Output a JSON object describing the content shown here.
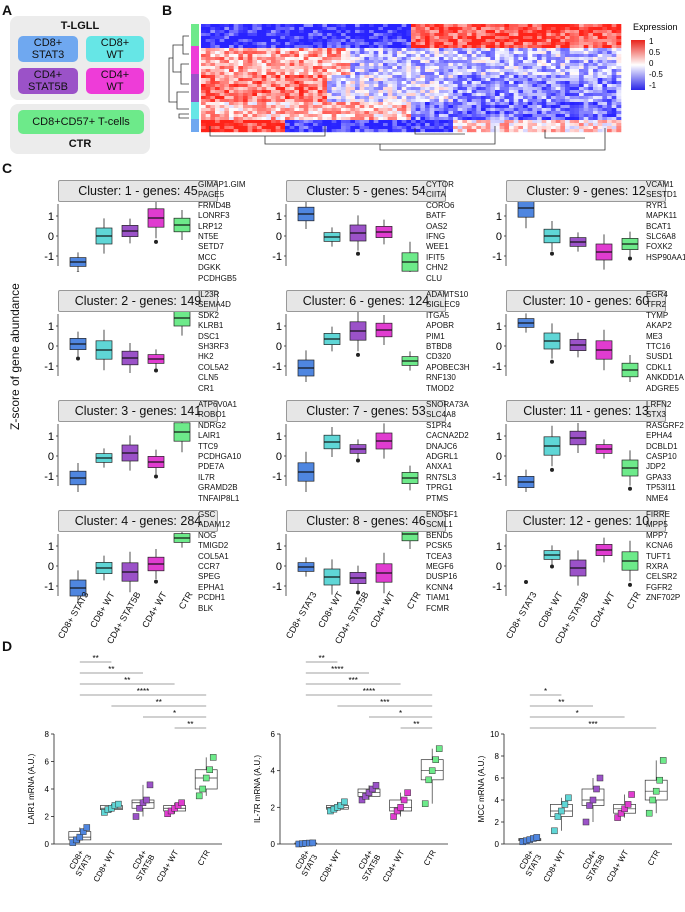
{
  "panel_labels": {
    "a": "A",
    "b": "B",
    "c": "C",
    "d": "D"
  },
  "panel_a": {
    "top_title": "T-LGLL",
    "bottom_title": "CTR",
    "cells": [
      {
        "label": "CD8+\nSTAT3",
        "color": "#6fa8f0"
      },
      {
        "label": "CD8+\nWT",
        "color": "#66e6e6"
      },
      {
        "label": "CD4+\nSTAT5B",
        "color": "#9b52c8"
      },
      {
        "label": "CD4+\nWT",
        "color": "#ee3cd8"
      }
    ],
    "ctr_label": "CD8+CD57+ T-cells",
    "ctr_color": "#6dea8a"
  },
  "panel_b": {
    "legend_title": "Expression",
    "legend_ticks": [
      "1",
      "0.5",
      "0",
      "-0.5",
      "-1"
    ],
    "group_colors": [
      "#6dea8a",
      "#ee3cd8",
      "#9b52c8",
      "#66e6e6",
      "#6fa8f0"
    ]
  },
  "panel_c": {
    "y_axis_label": "Z-score of gene abundance",
    "groups": [
      "CD8+ STAT3",
      "CD8+ WT",
      "CD4+ STAT5B",
      "CD4+ WT",
      "CTR"
    ],
    "group_colors": [
      "#4f86e0",
      "#5fd6d6",
      "#9b52c8",
      "#e03cd0",
      "#6dea8a"
    ],
    "y_ticks": [
      "1",
      "0",
      "-1"
    ],
    "clusters": [
      {
        "title": "Cluster:  1 - genes: 45",
        "genes": [
          "GIMAP1.GIM",
          "PAGE5",
          "FRMD4B",
          "LONRF3",
          "LRP12",
          "NT5E",
          "SETD7",
          "MCC",
          "DGKK",
          "PCDHGB5"
        ],
        "medians": [
          -1.3,
          0.0,
          0.25,
          0.9,
          0.55
        ]
      },
      {
        "title": "Cluster:  5 - genes: 54",
        "genes": [
          "CYTOR",
          "CIITA",
          "CORO6",
          "BATF",
          "OAS2",
          "IFNG",
          "WEE1",
          "IFIT5",
          "CHN2",
          "CLU"
        ],
        "medians": [
          1.1,
          -0.05,
          0.15,
          0.2,
          -1.3
        ]
      },
      {
        "title": "Cluster:  9 - genes: 12",
        "genes": [
          "VCAM1",
          "SESTD1",
          "RYR1",
          "MAPK11",
          "BCAT1",
          "SLC6A8",
          "FOXK2",
          "HSP90AA1"
        ],
        "medians": [
          1.4,
          0.0,
          -0.3,
          -0.8,
          -0.4
        ]
      },
      {
        "title": "Cluster:  2 - genes: 149",
        "genes": [
          "IL23R",
          "SEMA4D",
          "SDK2",
          "KLRB1",
          "DSC1",
          "SH3RF3",
          "HK2",
          "COL5A2",
          "CLN5",
          "CR1"
        ],
        "medians": [
          0.1,
          -0.2,
          -0.6,
          -0.65,
          1.4
        ]
      },
      {
        "title": "Cluster:  6 - genes: 124",
        "genes": [
          "ADAMTS10",
          "SIGLEC9",
          "ITGA5",
          "APOBR",
          "PIM1",
          "BTBD8",
          "CD320",
          "APOBEC3H",
          "RNF130",
          "TMOD2"
        ],
        "medians": [
          -1.1,
          0.35,
          0.75,
          0.8,
          -0.75
        ]
      },
      {
        "title": "Cluster:  10 - genes: 60",
        "genes": [
          "EGR4",
          "TFR2",
          "TYMP",
          "AKAP2",
          "ME3",
          "TTC16",
          "SUSD1",
          "CDKL1",
          "ANKDD1A",
          "ADGRE5"
        ],
        "medians": [
          1.15,
          0.25,
          0.05,
          -0.2,
          -1.2
        ]
      },
      {
        "title": "Cluster:  3 - genes: 141",
        "genes": [
          "ATP6V0A1",
          "ROBO1",
          "NDRG2",
          "LAIR1",
          "TTC9",
          "PCDHGA10",
          "PDE7A",
          "IL7R",
          "GRAMD2B",
          "TNFAIP8L1"
        ],
        "medians": [
          -1.1,
          -0.1,
          0.15,
          -0.3,
          1.2
        ]
      },
      {
        "title": "Cluster:  7 - genes: 53",
        "genes": [
          "SNORA73A",
          "SLC4A8",
          "S1PR4",
          "CACNA2D2",
          "DNAJC6",
          "ADGRL1",
          "ANXA1",
          "RN7SL3",
          "TPRG1",
          "PTMS"
        ],
        "medians": [
          -0.8,
          0.7,
          0.35,
          0.75,
          -1.1
        ]
      },
      {
        "title": "Cluster:  11 - genes: 13",
        "genes": [
          "LRFN2",
          "STX3",
          "RASGRF2",
          "EPHA4",
          "DCBLD1",
          "CASP10",
          "JDP2",
          "GPA33",
          "TP53I11",
          "NME4"
        ],
        "medians": [
          -1.3,
          0.5,
          0.9,
          0.35,
          -0.6
        ]
      },
      {
        "title": "Cluster:  4 - genes: 284",
        "genes": [
          "GSC",
          "ADAM12",
          "NOG",
          "TMIGD2",
          "COL5A1",
          "CCR7",
          "SPEG",
          "EPHA1",
          "PCDH1",
          "BLK"
        ],
        "medians": [
          -1.1,
          -0.1,
          -0.3,
          0.1,
          1.4
        ]
      },
      {
        "title": "Cluster:  8 - genes: 46",
        "genes": [
          "ENOSF1",
          "SCML1",
          "BEND5",
          "PCSK5",
          "TCEA3",
          "MEGF6",
          "DUSP16",
          "KCNN4",
          "TIAM1",
          "FCMR"
        ],
        "medians": [
          -0.05,
          -0.55,
          -0.6,
          -0.35,
          1.6
        ]
      },
      {
        "title": "Cluster:  12 - genes: 10",
        "genes": [
          "FIRRE",
          "MPP5",
          "MPP7",
          "KCNA6",
          "TUFT1",
          "RXRA",
          "CELSR2",
          "FGFR2",
          "ZNF702P"
        ],
        "medians": [
          null,
          0.55,
          -0.1,
          0.8,
          0.25
        ]
      }
    ]
  },
  "chart_data": [
    {
      "type": "box",
      "title": "",
      "ylabel": "LAIR1 mRNA (A.U.)",
      "categories": [
        "CD8+\nSTAT3",
        "CD8+ WT",
        "CD4+\nSTAT5B",
        "CD4+ WT",
        "CTR"
      ],
      "ylim": [
        0,
        8
      ],
      "y_ticks": [
        "0",
        "2",
        "4",
        "6",
        "8"
      ],
      "points": [
        [
          0.1,
          0.3,
          0.5,
          0.9,
          1.2
        ],
        [
          2.3,
          2.5,
          2.6,
          2.8,
          2.9
        ],
        [
          2.0,
          2.6,
          3.0,
          3.2,
          4.3
        ],
        [
          2.2,
          2.4,
          2.6,
          2.8,
          3.0
        ],
        [
          3.5,
          4.0,
          4.8,
          5.4,
          6.3
        ]
      ],
      "significance": [
        [
          "**",
          0,
          1
        ],
        [
          "**",
          0,
          2
        ],
        [
          "**",
          0,
          3
        ],
        [
          "****",
          0,
          4
        ],
        [
          "**",
          1,
          4
        ],
        [
          "*",
          2,
          4
        ],
        [
          "**",
          3,
          4
        ]
      ]
    },
    {
      "type": "box",
      "title": "",
      "ylabel": "IL-7R mRNA (A.U.)",
      "categories": [
        "CD8+\nSTAT3",
        "CD8+ WT",
        "CD4+\nSTAT5B",
        "CD4+ WT",
        "CTR"
      ],
      "ylim": [
        0,
        6
      ],
      "y_ticks": [
        "0",
        "2",
        "4",
        "6"
      ],
      "points": [
        [
          0.0,
          0.02,
          0.04,
          0.05,
          0.06
        ],
        [
          1.8,
          1.9,
          2.0,
          2.1,
          2.3
        ],
        [
          2.4,
          2.6,
          2.8,
          3.0,
          3.2
        ],
        [
          1.5,
          1.8,
          2.0,
          2.4,
          2.8
        ],
        [
          2.2,
          3.5,
          4.0,
          4.6,
          5.2
        ]
      ],
      "significance": [
        [
          "**",
          0,
          1
        ],
        [
          "****",
          0,
          2
        ],
        [
          "***",
          0,
          3
        ],
        [
          "****",
          0,
          4
        ],
        [
          "***",
          1,
          4
        ],
        [
          "*",
          2,
          4
        ],
        [
          "**",
          3,
          4
        ]
      ]
    },
    {
      "type": "box",
      "title": "",
      "ylabel": "MCC mRNA (A.U.)",
      "categories": [
        "CD8+\nSTAT3",
        "CD8+ WT",
        "CD4+\nSTAT5B",
        "CD4+ WT",
        "CTR"
      ],
      "ylim": [
        0,
        10
      ],
      "y_ticks": [
        "0",
        "2",
        "4",
        "6",
        "8",
        "10"
      ],
      "points": [
        [
          0.2,
          0.3,
          0.4,
          0.5,
          0.6
        ],
        [
          1.2,
          2.5,
          3.0,
          3.6,
          4.2
        ],
        [
          2.0,
          3.5,
          4.0,
          5.0,
          6.0
        ],
        [
          2.4,
          2.8,
          3.2,
          3.6,
          4.5
        ],
        [
          2.8,
          4.0,
          4.8,
          5.8,
          7.6
        ]
      ],
      "significance": [
        [
          "*",
          0,
          1
        ],
        [
          "**",
          0,
          2
        ],
        [
          "*",
          0,
          3
        ],
        [
          "***",
          0,
          4
        ]
      ]
    }
  ]
}
